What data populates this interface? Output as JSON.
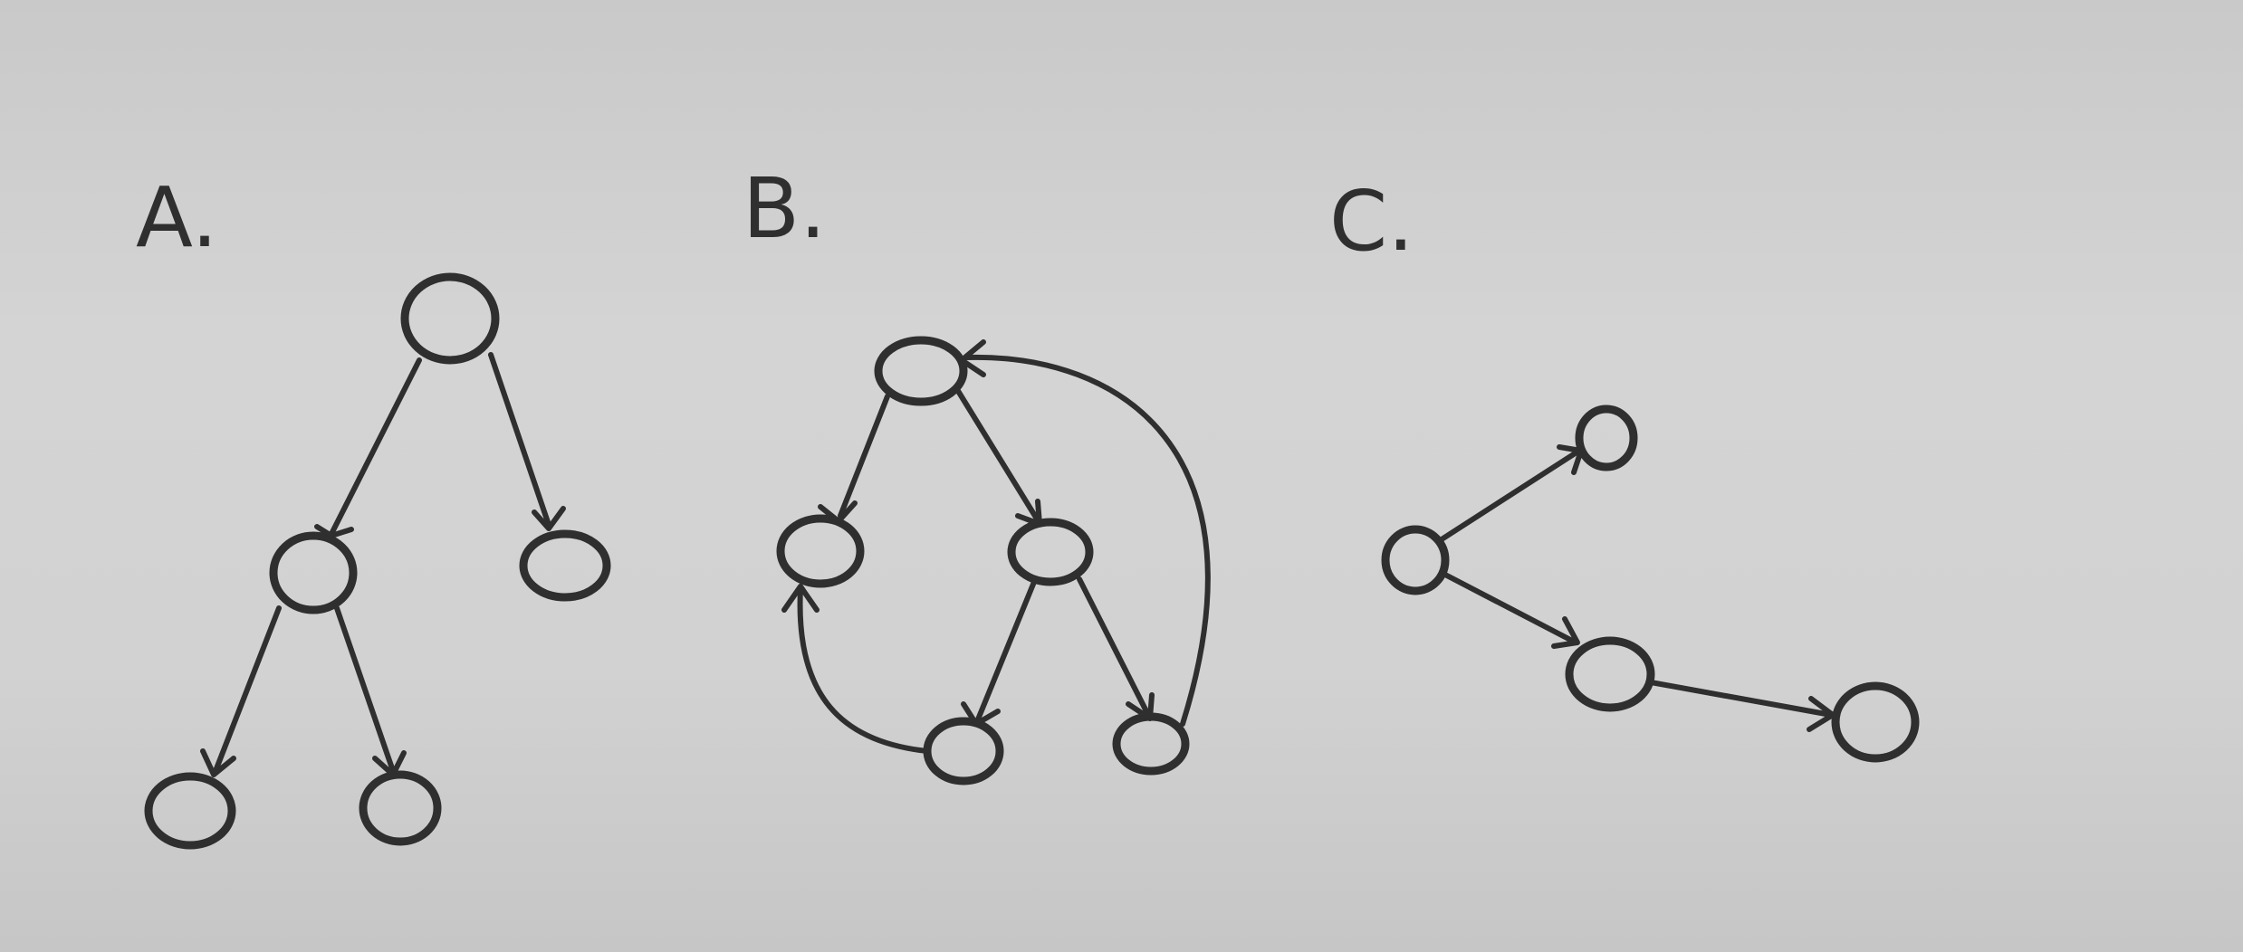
{
  "panels": [
    {
      "id": "A",
      "label": "A."
    },
    {
      "id": "B",
      "label": "B."
    },
    {
      "id": "C",
      "label": "C."
    }
  ],
  "colors": {
    "paper": "#d0d0d0",
    "ink": "#2f2f2f"
  }
}
